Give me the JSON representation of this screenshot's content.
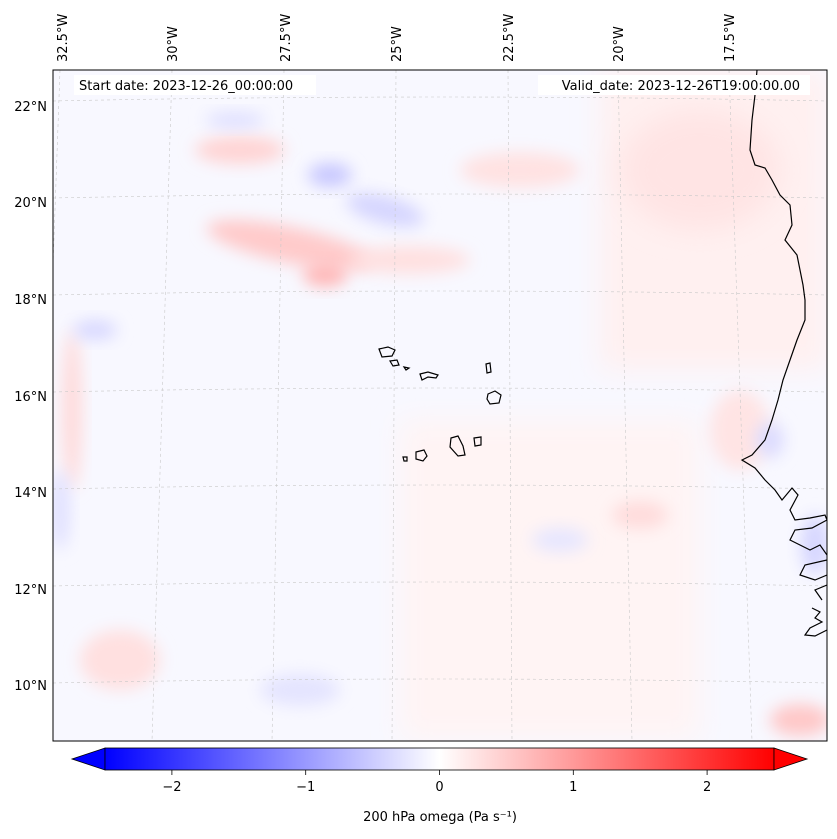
{
  "map": {
    "start_label": "Start date: 2023-12-26_00:00:00",
    "valid_label": "Valid_date: 2023-12-26T19:00:00.00",
    "lon_labels": [
      "32.5°W",
      "30°W",
      "27.5°W",
      "25°W",
      "22.5°W",
      "20°W",
      "17.5°W"
    ],
    "lat_labels": [
      "22°N",
      "20°N",
      "18°N",
      "16°N",
      "14°N",
      "12°N",
      "10°N"
    ],
    "colors": {
      "negative": "#0000ff",
      "zero": "#ffffff",
      "positive": "#ff0000",
      "coastline": "#000000",
      "grid": "#c8c8c8"
    }
  },
  "colorbar": {
    "label": "200 hPa omega (Pa s⁻¹)",
    "ticks": [
      "−2",
      "−1",
      "0",
      "1",
      "2"
    ],
    "tick_values": [
      -2,
      -1,
      0,
      1,
      2
    ],
    "range": [
      -2.5,
      2.5
    ]
  }
}
